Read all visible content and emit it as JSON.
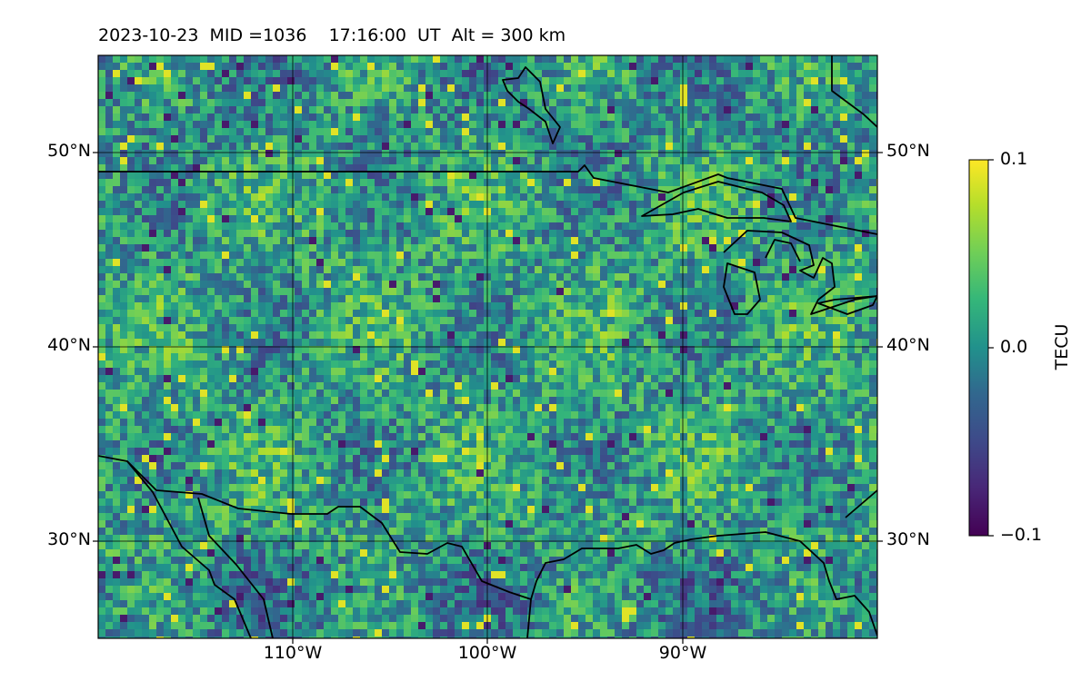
{
  "title": "2023-10-23  MID =1036    17:16:00  UT  Alt = 300 km",
  "map": {
    "lat_labels": [
      "50°N",
      "40°N",
      "30°N"
    ],
    "lon_labels": [
      "110°W",
      "100°W",
      "90°W"
    ],
    "lat_range": [
      25,
      55
    ],
    "lon_range": [
      -120,
      -80
    ],
    "gridlines": true,
    "coastlines": true
  },
  "colorbar": {
    "label": "TECU",
    "colormap": "viridis",
    "tick_labels": [
      "0.1",
      "0.0",
      "−0.1"
    ],
    "range": [
      -0.1,
      0.1
    ]
  },
  "colors": {
    "viridis_low": "#440154",
    "viridis_mid": "#21918c",
    "viridis_high": "#fde725"
  }
}
